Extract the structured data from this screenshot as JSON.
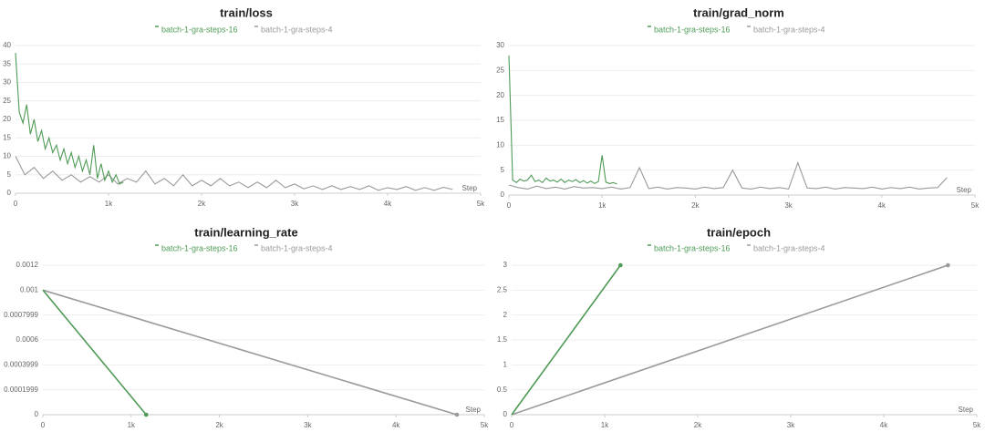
{
  "chart_data": [
    {
      "type": "line",
      "title": "train/loss",
      "xlabel": "Step",
      "grid": true,
      "xlim": [
        0,
        5000
      ],
      "xticks": [
        0,
        {
          "value": 1000,
          "label": "1k"
        },
        {
          "value": 2000,
          "label": "2k"
        },
        {
          "value": 3000,
          "label": "3k"
        },
        {
          "value": 4000,
          "label": "4k"
        },
        {
          "value": 5000,
          "label": "5k"
        }
      ],
      "ylim": [
        0,
        40
      ],
      "yticks": [
        0,
        5,
        10,
        15,
        20,
        25,
        30,
        35,
        40
      ],
      "series": [
        {
          "name": "batch-1-gra-steps-16",
          "color": "#4f9a56",
          "x": [
            0,
            40,
            80,
            120,
            160,
            200,
            240,
            280,
            320,
            360,
            400,
            440,
            480,
            520,
            560,
            600,
            640,
            680,
            720,
            760,
            800,
            840,
            880,
            920,
            960,
            1000,
            1040,
            1080,
            1120,
            1160
          ],
          "values": [
            38,
            22,
            19,
            24,
            16,
            20,
            14,
            17,
            12,
            15,
            11,
            13,
            9,
            12,
            8,
            11,
            7,
            10,
            6,
            9,
            5,
            13,
            4,
            8,
            3.5,
            6,
            3,
            5,
            2.5,
            3
          ]
        },
        {
          "name": "batch-1-gra-steps-4",
          "color": "#9a9a9a",
          "x": [
            0,
            100,
            200,
            300,
            400,
            500,
            600,
            700,
            800,
            900,
            1000,
            1100,
            1200,
            1300,
            1400,
            1500,
            1600,
            1700,
            1800,
            1900,
            2000,
            2100,
            2200,
            2300,
            2400,
            2500,
            2600,
            2700,
            2800,
            2900,
            3000,
            3100,
            3200,
            3300,
            3400,
            3500,
            3600,
            3700,
            3800,
            3900,
            4000,
            4100,
            4200,
            4300,
            4400,
            4500,
            4600,
            4700
          ],
          "values": [
            10,
            5,
            7,
            4,
            6,
            3.5,
            5,
            3,
            4.5,
            3,
            5,
            2.5,
            4,
            3,
            6,
            2.5,
            4,
            2,
            5,
            2,
            3.5,
            2,
            4,
            2,
            3,
            1.5,
            3,
            1.5,
            3.5,
            1.5,
            2.5,
            1.2,
            2,
            1,
            2,
            1,
            1.8,
            1,
            2,
            0.8,
            1.5,
            1,
            1.8,
            0.8,
            1.5,
            0.8,
            1.6,
            1
          ]
        }
      ]
    },
    {
      "type": "line",
      "title": "train/grad_norm",
      "xlabel": "Step",
      "grid": true,
      "xlim": [
        0,
        5000
      ],
      "xticks": [
        0,
        {
          "value": 1000,
          "label": "1k"
        },
        {
          "value": 2000,
          "label": "2k"
        },
        {
          "value": 3000,
          "label": "3k"
        },
        {
          "value": 4000,
          "label": "4k"
        },
        {
          "value": 5000,
          "label": "5k"
        }
      ],
      "ylim": [
        0,
        30
      ],
      "yticks": [
        0,
        5,
        10,
        15,
        20,
        25,
        30
      ],
      "series": [
        {
          "name": "batch-1-gra-steps-16",
          "color": "#4f9a56",
          "x": [
            0,
            40,
            80,
            120,
            160,
            200,
            240,
            280,
            320,
            360,
            400,
            440,
            480,
            520,
            560,
            600,
            640,
            680,
            720,
            760,
            800,
            840,
            880,
            920,
            960,
            1000,
            1040,
            1080,
            1120,
            1160
          ],
          "values": [
            28,
            3,
            2.5,
            3.2,
            2.8,
            3,
            4,
            2.7,
            3,
            2.5,
            3.4,
            2.8,
            3,
            2.6,
            3.2,
            2.5,
            3,
            2.7,
            3.1,
            2.5,
            2.9,
            2.4,
            2.8,
            2.3,
            2.7,
            8,
            2.6,
            2.3,
            2.5,
            2.2
          ]
        },
        {
          "name": "batch-1-gra-steps-4",
          "color": "#9a9a9a",
          "x": [
            0,
            100,
            200,
            300,
            400,
            500,
            600,
            700,
            800,
            900,
            1000,
            1100,
            1200,
            1300,
            1400,
            1500,
            1600,
            1700,
            1800,
            1900,
            2000,
            2100,
            2200,
            2300,
            2400,
            2500,
            2600,
            2700,
            2800,
            2900,
            3000,
            3100,
            3200,
            3300,
            3400,
            3500,
            3600,
            3700,
            3800,
            3900,
            4000,
            4100,
            4200,
            4300,
            4400,
            4500,
            4600,
            4700
          ],
          "values": [
            2,
            1.5,
            1.2,
            1.8,
            1.3,
            1.6,
            1.2,
            1.7,
            1.4,
            1.5,
            1.3,
            1.6,
            1.2,
            1.5,
            5.5,
            1.3,
            1.6,
            1.2,
            1.5,
            1.4,
            1.2,
            1.6,
            1.3,
            1.5,
            5,
            1.4,
            1.2,
            1.6,
            1.3,
            1.5,
            1.2,
            6.5,
            1.4,
            1.3,
            1.6,
            1.2,
            1.5,
            1.4,
            1.3,
            1.6,
            1.2,
            1.5,
            1.3,
            1.6,
            1.2,
            1.4,
            1.5,
            3.5
          ]
        }
      ]
    },
    {
      "type": "line",
      "title": "train/learning_rate",
      "xlabel": "Step",
      "grid": true,
      "end_markers": true,
      "xlim": [
        0,
        5000
      ],
      "xticks": [
        0,
        {
          "value": 1000,
          "label": "1k"
        },
        {
          "value": 2000,
          "label": "2k"
        },
        {
          "value": 3000,
          "label": "3k"
        },
        {
          "value": 4000,
          "label": "4k"
        },
        {
          "value": 5000,
          "label": "5k"
        }
      ],
      "ylim": [
        0,
        0.0012
      ],
      "yticks": [
        0,
        0.0001999,
        0.0003999,
        0.0006,
        0.0007999,
        0.001,
        0.0012
      ],
      "series": [
        {
          "name": "batch-1-gra-steps-16",
          "color": "#4f9a56",
          "x": [
            0,
            1170
          ],
          "values": [
            0.001,
            0
          ]
        },
        {
          "name": "batch-1-gra-steps-4",
          "color": "#9a9a9a",
          "x": [
            0,
            4690
          ],
          "values": [
            0.001,
            0
          ]
        }
      ]
    },
    {
      "type": "line",
      "title": "train/epoch",
      "xlabel": "Step",
      "grid": true,
      "end_markers": true,
      "xlim": [
        0,
        5000
      ],
      "xticks": [
        0,
        {
          "value": 1000,
          "label": "1k"
        },
        {
          "value": 2000,
          "label": "2k"
        },
        {
          "value": 3000,
          "label": "3k"
        },
        {
          "value": 4000,
          "label": "4k"
        },
        {
          "value": 5000,
          "label": "5k"
        }
      ],
      "ylim": [
        0,
        3
      ],
      "yticks": [
        0,
        0.5,
        1,
        1.5,
        2,
        2.5,
        3
      ],
      "series": [
        {
          "name": "batch-1-gra-steps-16",
          "color": "#4f9a56",
          "x": [
            0,
            1170
          ],
          "values": [
            0,
            3
          ]
        },
        {
          "name": "batch-1-gra-steps-4",
          "color": "#9a9a9a",
          "x": [
            0,
            4690
          ],
          "values": [
            0,
            3
          ]
        }
      ]
    }
  ]
}
